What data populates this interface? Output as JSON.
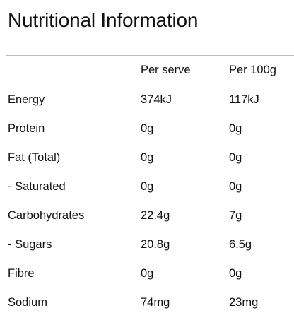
{
  "title": "Nutritional Information",
  "table": {
    "headers": [
      "",
      "Per serve",
      "Per 100g"
    ],
    "rows": [
      {
        "label": "Energy",
        "per_serve": "374kJ",
        "per_100g": "117kJ"
      },
      {
        "label": "Protein",
        "per_serve": "0g",
        "per_100g": "0g"
      },
      {
        "label": "Fat (Total)",
        "per_serve": "0g",
        "per_100g": "0g"
      },
      {
        "label": "- Saturated",
        "per_serve": "0g",
        "per_100g": "0g"
      },
      {
        "label": "Carbohydrates",
        "per_serve": "22.4g",
        "per_100g": "7g"
      },
      {
        "label": "- Sugars",
        "per_serve": "20.8g",
        "per_100g": "6.5g"
      },
      {
        "label": "Fibre",
        "per_serve": "0g",
        "per_100g": "0g"
      },
      {
        "label": "Sodium",
        "per_serve": "74mg",
        "per_100g": "23mg"
      }
    ]
  }
}
